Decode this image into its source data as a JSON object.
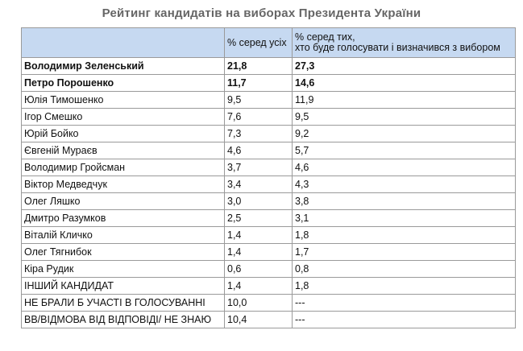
{
  "title": "Рейтинг кандидатів на виборах Президента України",
  "table": {
    "headers": [
      "",
      "% серед усіх",
      "% серед тих, хто буде голосувати і визначився з вибором"
    ],
    "header_vote_line1": "% серед тих,",
    "header_vote_line2": "хто буде голосувати і визначився з вибором",
    "header_bg": "#c6d9f1",
    "rows": [
      {
        "name": "Володимир Зеленський",
        "all": "21,8",
        "voters": "27,3",
        "bold": true
      },
      {
        "name": "Петро Порошенко",
        "all": "11,7",
        "voters": "14,6",
        "bold": true
      },
      {
        "name": "Юлія Тимошенко",
        "all": "9,5",
        "voters": "11,9",
        "bold": false
      },
      {
        "name": "Ігор Смешко",
        "all": "7,6",
        "voters": "9,5",
        "bold": false
      },
      {
        "name": "Юрій Бойко",
        "all": "7,3",
        "voters": "9,2",
        "bold": false
      },
      {
        "name": "Євгеній Мураєв",
        "all": "4,6",
        "voters": "5,7",
        "bold": false
      },
      {
        "name": "Володимир Гройсман",
        "all": "3,7",
        "voters": "4,6",
        "bold": false
      },
      {
        "name": "Віктор Медведчук",
        "all": "3,4",
        "voters": "4,3",
        "bold": false
      },
      {
        "name": "Олег Ляшко",
        "all": "3,0",
        "voters": "3,8",
        "bold": false
      },
      {
        "name": "Дмитро Разумков",
        "all": "2,5",
        "voters": "3,1",
        "bold": false
      },
      {
        "name": "Віталій Кличко",
        "all": "1,4",
        "voters": "1,8",
        "bold": false
      },
      {
        "name": "Олег Тягнибок",
        "all": "1,4",
        "voters": "1,7",
        "bold": false
      },
      {
        "name": "Кіра Рудик",
        "all": "0,6",
        "voters": "0,8",
        "bold": false
      },
      {
        "name": "ІНШИЙ КАНДИДАТ",
        "all": "1,4",
        "voters": "1,8",
        "bold": false
      },
      {
        "name": "НЕ БРАЛИ Б УЧАСТІ В ГОЛОСУВАННІ",
        "all": "10,0",
        "voters": "---",
        "bold": false
      },
      {
        "name": "ВВ/ВІДМОВА ВІД ВІДПОВІДІ/ НЕ ЗНАЮ",
        "all": "10,4",
        "voters": "---",
        "bold": false
      }
    ]
  }
}
